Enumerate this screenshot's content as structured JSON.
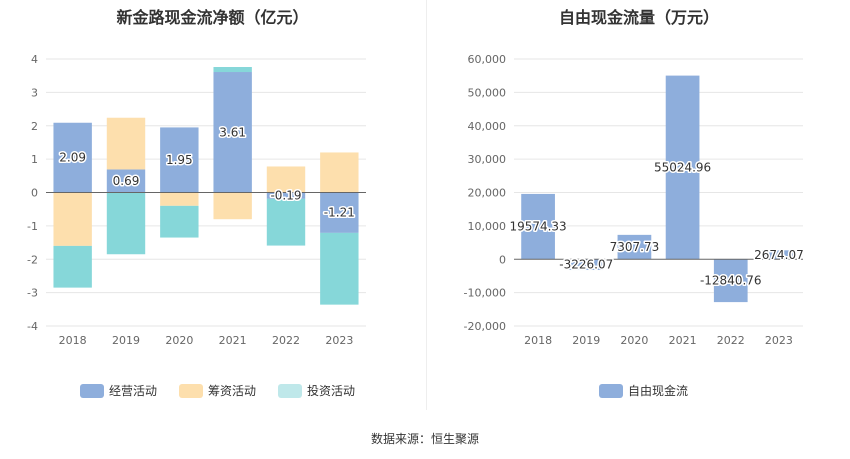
{
  "chart_data": [
    {
      "type": "bar",
      "stacked": true,
      "title": "新金路现金流净额（亿元）",
      "categories": [
        "2018",
        "2019",
        "2020",
        "2021",
        "2022",
        "2023"
      ],
      "ylim": [
        -4,
        4
      ],
      "yticks": [
        -4,
        -3,
        -2,
        -1,
        0,
        1,
        2,
        3,
        4
      ],
      "grid": true,
      "legend_position": "bottom",
      "series": [
        {
          "name": "经营活动",
          "color": "#8eaedc",
          "values": [
            2.09,
            0.69,
            1.95,
            3.61,
            -0.19,
            -1.21
          ],
          "labels": [
            "2.09",
            "0.69",
            "1.95",
            "3.61",
            "-0.19",
            "-1.21"
          ]
        },
        {
          "name": "筹资活动",
          "color": "#fddfad",
          "values": [
            -1.6,
            1.55,
            -0.4,
            -0.8,
            0.78,
            1.2
          ]
        },
        {
          "name": "投资活动",
          "color": "#86d7d9",
          "values": [
            -1.25,
            -1.85,
            -0.95,
            0.15,
            -1.4,
            -2.15
          ]
        }
      ]
    },
    {
      "type": "bar",
      "title": "自由现金流量（万元）",
      "categories": [
        "2018",
        "2019",
        "2020",
        "2021",
        "2022",
        "2023"
      ],
      "ylim": [
        -20000,
        60000
      ],
      "yticks": [
        -20000,
        -10000,
        0,
        10000,
        20000,
        30000,
        40000,
        50000,
        60000
      ],
      "ytick_labels": [
        "-20,000",
        "-10,000",
        "0",
        "10,000",
        "20,000",
        "30,000",
        "40,000",
        "50,000",
        "60,000"
      ],
      "grid": true,
      "legend_position": "bottom",
      "series": [
        {
          "name": "自由现金流",
          "color": "#8eaedc",
          "values": [
            19574.33,
            -3226.07,
            7307.73,
            55024.96,
            -12840.76,
            2674.07
          ],
          "labels": [
            "19574.33",
            "-3226.07",
            "7307.73",
            "55024.96",
            "-12840.76",
            "2674.07"
          ]
        }
      ]
    }
  ],
  "source_text": "数据来源：恒生聚源"
}
